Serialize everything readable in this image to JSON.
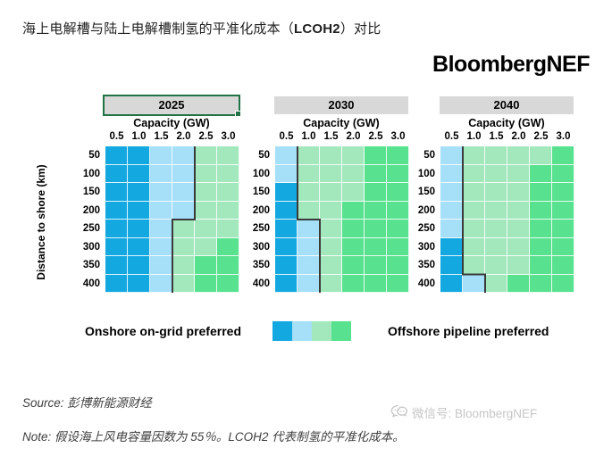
{
  "header": {
    "title_prefix": "海上电解槽与陆上电解槽制氢的平准化成本（",
    "title_bold": "LCOH2",
    "title_suffix": "）对比",
    "brand": "BloombergNEF"
  },
  "chart_data": {
    "type": "heatmap",
    "x_axis_title": "Capacity (GW)",
    "y_axis_title": "Distance to shore (km)",
    "x_ticks": [
      "0.5",
      "1.0",
      "1.5",
      "2.0",
      "2.5",
      "3.0"
    ],
    "y_ticks": [
      "50",
      "100",
      "150",
      "200",
      "250",
      "300",
      "350",
      "400"
    ],
    "palette": {
      "db": "#14A8E1",
      "lb": "#A5DFF8",
      "lg": "#A3E8BD",
      "mg": "#58E18E"
    },
    "palette_meaning": {
      "db": "onshore on-grid strongly preferred",
      "lb": "onshore on-grid slightly preferred",
      "lg": "offshore pipeline slightly preferred",
      "mg": "offshore pipeline strongly preferred"
    },
    "panels": [
      {
        "name": "2025",
        "selected": true,
        "grid": [
          [
            "db",
            "db",
            "lb",
            "lb",
            "lg",
            "lg"
          ],
          [
            "db",
            "db",
            "lb",
            "lb",
            "lg",
            "lg"
          ],
          [
            "db",
            "db",
            "lb",
            "lb",
            "lg",
            "lg"
          ],
          [
            "db",
            "db",
            "lb",
            "lb",
            "lg",
            "lg"
          ],
          [
            "db",
            "db",
            "lb",
            "lg",
            "lg",
            "lg"
          ],
          [
            "db",
            "db",
            "lb",
            "lg",
            "lg",
            "mg"
          ],
          [
            "db",
            "db",
            "lb",
            "lg",
            "mg",
            "mg"
          ],
          [
            "db",
            "db",
            "lb",
            "lg",
            "mg",
            "mg"
          ]
        ],
        "blue_counts": [
          4,
          4,
          4,
          4,
          3,
          3,
          3,
          3
        ]
      },
      {
        "name": "2030",
        "selected": false,
        "grid": [
          [
            "lb",
            "lg",
            "lg",
            "lg",
            "mg",
            "mg"
          ],
          [
            "lb",
            "lg",
            "lg",
            "lg",
            "mg",
            "mg"
          ],
          [
            "db",
            "lg",
            "lg",
            "lg",
            "mg",
            "mg"
          ],
          [
            "db",
            "lg",
            "lg",
            "mg",
            "mg",
            "mg"
          ],
          [
            "db",
            "lb",
            "lg",
            "mg",
            "mg",
            "mg"
          ],
          [
            "db",
            "lb",
            "lg",
            "mg",
            "mg",
            "mg"
          ],
          [
            "db",
            "lb",
            "lg",
            "mg",
            "mg",
            "mg"
          ],
          [
            "db",
            "lb",
            "lg",
            "mg",
            "mg",
            "mg"
          ]
        ],
        "blue_counts": [
          1,
          1,
          1,
          1,
          2,
          2,
          2,
          2
        ]
      },
      {
        "name": "2040",
        "selected": false,
        "grid": [
          [
            "lb",
            "lg",
            "lg",
            "lg",
            "lg",
            "mg"
          ],
          [
            "lb",
            "lg",
            "lg",
            "lg",
            "mg",
            "mg"
          ],
          [
            "lb",
            "lg",
            "lg",
            "lg",
            "mg",
            "mg"
          ],
          [
            "lb",
            "lg",
            "lg",
            "lg",
            "mg",
            "mg"
          ],
          [
            "lb",
            "lg",
            "lg",
            "lg",
            "mg",
            "mg"
          ],
          [
            "db",
            "lg",
            "lg",
            "lg",
            "mg",
            "mg"
          ],
          [
            "db",
            "lg",
            "lg",
            "lg",
            "mg",
            "mg"
          ],
          [
            "db",
            "lb",
            "lg",
            "mg",
            "mg",
            "mg"
          ]
        ],
        "blue_counts": [
          1,
          1,
          1,
          1,
          1,
          1,
          1,
          2
        ]
      }
    ],
    "boundary_color": "#3a3a3a",
    "legend": {
      "left_label": "Onshore on-grid preferred",
      "right_label": "Offshore pipeline preferred",
      "swatch_order": [
        "db",
        "lb",
        "lg",
        "mg"
      ]
    }
  },
  "footer": {
    "source_label": "Source:",
    "source_text": "彭博新能源财经",
    "note_label": "Note:",
    "note_text": "假设海上风电容量因数为 55％。LCOH2 代表制氢的平准化成本。",
    "watermark_text": "微信号: BloombergNEF"
  }
}
